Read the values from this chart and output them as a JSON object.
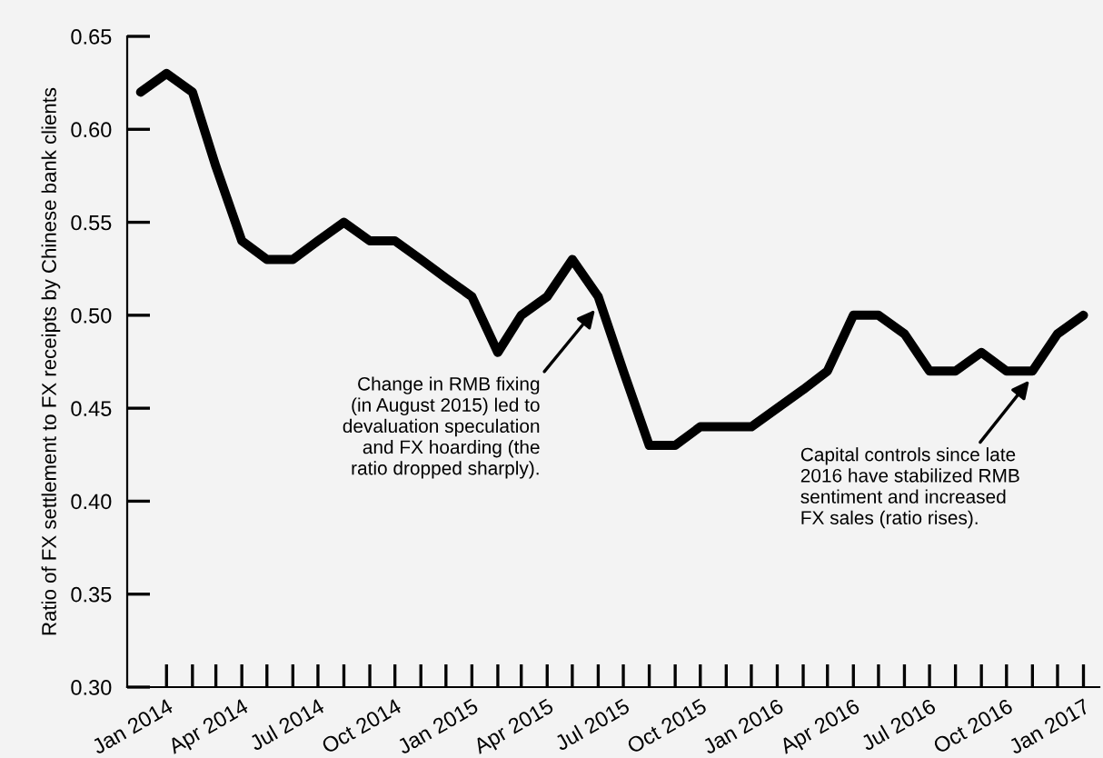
{
  "chart_data": {
    "type": "line",
    "ylabel": "Ratio of FX settlement to FX receipts by Chinese bank clients",
    "x": [
      "2013-12",
      "2014-01",
      "2014-02",
      "2014-03",
      "2014-04",
      "2014-05",
      "2014-06",
      "2014-07",
      "2014-08",
      "2014-09",
      "2014-10",
      "2014-11",
      "2014-12",
      "2015-01",
      "2015-02",
      "2015-03",
      "2015-04",
      "2015-05",
      "2015-06",
      "2015-07",
      "2015-08",
      "2015-09",
      "2015-10",
      "2015-11",
      "2015-12",
      "2016-01",
      "2016-02",
      "2016-03",
      "2016-04",
      "2016-05",
      "2016-06",
      "2016-07",
      "2016-08",
      "2016-09",
      "2016-10",
      "2016-11",
      "2016-12",
      "2017-01"
    ],
    "series": [
      {
        "color": "#000000",
        "values": [
          0.62,
          0.63,
          0.62,
          0.58,
          0.54,
          0.53,
          0.53,
          0.54,
          0.55,
          0.54,
          0.54,
          0.53,
          0.52,
          0.51,
          0.48,
          0.5,
          0.51,
          0.53,
          0.51,
          0.47,
          0.43,
          0.43,
          0.44,
          0.44,
          0.44,
          0.45,
          0.46,
          0.47,
          0.5,
          0.5,
          0.49,
          0.47,
          0.47,
          0.48,
          0.47,
          0.47,
          0.49,
          0.5
        ]
      }
    ],
    "ylim": [
      0.3,
      0.65
    ],
    "yticks": [
      {
        "value": 0.3,
        "label": "0.30"
      },
      0.35,
      {
        "value": 0.4,
        "label": "0.40"
      },
      0.45,
      {
        "value": 0.5,
        "label": "0.50"
      },
      0.55,
      {
        "value": 0.6,
        "label": "0.60"
      },
      0.65
    ],
    "xlim": [
      "2013-11-15",
      "2017-01-20"
    ],
    "xticks": [
      {
        "value": "2014-01",
        "label": "Jan 2014"
      },
      {
        "value": "2014-02",
        "label": null
      },
      {
        "value": "2014-03",
        "label": null
      },
      {
        "value": "2014-04",
        "label": "Apr 2014"
      },
      {
        "value": "2014-05",
        "label": null
      },
      {
        "value": "2014-06",
        "label": null
      },
      {
        "value": "2014-07",
        "label": "Jul 2014"
      },
      {
        "value": "2014-08",
        "label": null
      },
      {
        "value": "2014-09",
        "label": null
      },
      {
        "value": "2014-10",
        "label": "Oct 2014"
      },
      {
        "value": "2014-11",
        "label": null
      },
      {
        "value": "2014-12",
        "label": null
      },
      {
        "value": "2015-01",
        "label": "Jan 2015"
      },
      {
        "value": "2015-02",
        "label": null
      },
      {
        "value": "2015-03",
        "label": null
      },
      {
        "value": "2015-04",
        "label": "Apr 2015"
      },
      {
        "value": "2015-05",
        "label": null
      },
      {
        "value": "2015-06",
        "label": null
      },
      {
        "value": "2015-07",
        "label": "Jul 2015"
      },
      {
        "value": "2015-08",
        "label": null
      },
      {
        "value": "2015-09",
        "label": null
      },
      {
        "value": "2015-10",
        "label": "Oct 2015"
      },
      {
        "value": "2015-11",
        "label": null
      },
      {
        "value": "2015-12",
        "label": null
      },
      {
        "value": "2016-01",
        "label": "Jan 2016"
      },
      {
        "value": "2016-02",
        "label": null
      },
      {
        "value": "2016-03",
        "label": null
      },
      {
        "value": "2016-04",
        "label": "Apr 2016"
      },
      {
        "value": "2016-05",
        "label": null
      },
      {
        "value": "2016-06",
        "label": null
      },
      {
        "value": "2016-07",
        "label": "Jul 2016"
      },
      {
        "value": "2016-08",
        "label": null
      },
      {
        "value": "2016-09",
        "label": null
      },
      {
        "value": "2016-10",
        "label": "Oct 2016"
      },
      {
        "value": "2016-11",
        "label": null
      },
      {
        "value": "2016-12",
        "label": null
      },
      {
        "value": "2017-01",
        "label": "Jan 2017"
      }
    ],
    "annotations": [
      {
        "text": "Change in RMB fixing\n(in August 2015) led to\ndevaluation speculation\nand FX hoarding (the\nratio dropped sharply).",
        "x": "2015-06",
        "y": 0.505
      },
      {
        "text": "Capital controls since late\n2016 have stabilized RMB\nsentiment and increased\nFX sales (ratio rises).",
        "x": "2016-11",
        "y": 0.467
      }
    ],
    "grid": false,
    "legend": false,
    "marker": "none",
    "line_style": "solid"
  }
}
